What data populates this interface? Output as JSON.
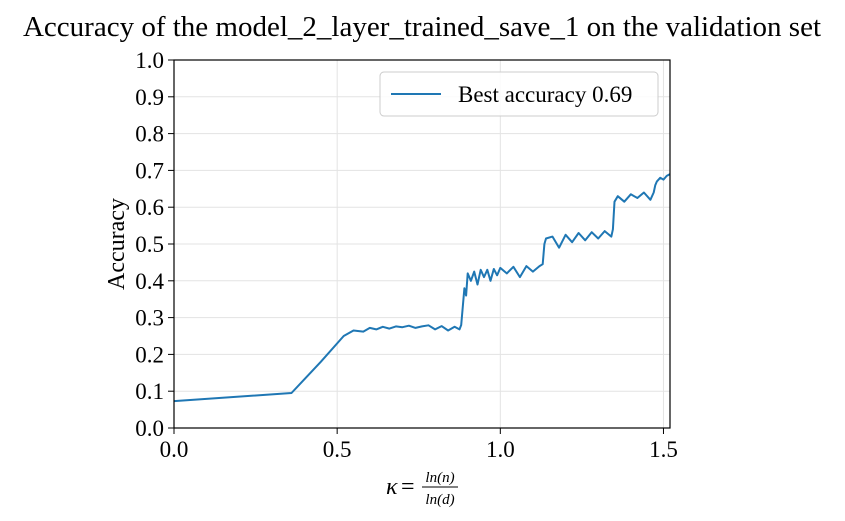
{
  "chart_data": {
    "type": "line",
    "title": "Accuracy of the model_2_layer_trained_save_1 on the validation set",
    "xlabel": {
      "symbol": "κ",
      "equals": "=",
      "numerator": "ln(n)",
      "denominator": "ln(d)"
    },
    "ylabel": "Accuracy",
    "xlim": [
      0.0,
      1.52
    ],
    "ylim": [
      0.0,
      1.0
    ],
    "xticks": [
      0.0,
      0.5,
      1.0,
      1.5
    ],
    "xtick_labels": [
      "0.0",
      "0.5",
      "1.0",
      "1.5"
    ],
    "yticks": [
      0.0,
      0.1,
      0.2,
      0.3,
      0.4,
      0.5,
      0.6,
      0.7,
      0.8,
      0.9,
      1.0
    ],
    "ytick_labels": [
      "0.0",
      "0.1",
      "0.2",
      "0.3",
      "0.4",
      "0.5",
      "0.6",
      "0.7",
      "0.8",
      "0.9",
      "1.0"
    ],
    "grid": true,
    "legend_position": "top-right",
    "color": "#1f77b4",
    "series": [
      {
        "name": "Best accuracy 0.69",
        "x": [
          0.0,
          0.36,
          0.45,
          0.52,
          0.55,
          0.58,
          0.6,
          0.62,
          0.64,
          0.66,
          0.68,
          0.7,
          0.72,
          0.74,
          0.76,
          0.78,
          0.8,
          0.82,
          0.84,
          0.86,
          0.875,
          0.88,
          0.885,
          0.89,
          0.895,
          0.9,
          0.91,
          0.92,
          0.93,
          0.94,
          0.95,
          0.96,
          0.97,
          0.98,
          0.99,
          1.0,
          1.02,
          1.04,
          1.06,
          1.08,
          1.1,
          1.12,
          1.13,
          1.135,
          1.14,
          1.16,
          1.18,
          1.2,
          1.22,
          1.24,
          1.26,
          1.28,
          1.3,
          1.32,
          1.34,
          1.345,
          1.35,
          1.36,
          1.38,
          1.4,
          1.42,
          1.44,
          1.46,
          1.47,
          1.475,
          1.48,
          1.49,
          1.5,
          1.51,
          1.52
        ],
        "y": [
          0.073,
          0.095,
          0.18,
          0.25,
          0.265,
          0.262,
          0.272,
          0.268,
          0.275,
          0.27,
          0.276,
          0.274,
          0.278,
          0.272,
          0.276,
          0.279,
          0.268,
          0.277,
          0.265,
          0.275,
          0.268,
          0.28,
          0.33,
          0.38,
          0.36,
          0.42,
          0.4,
          0.425,
          0.39,
          0.43,
          0.41,
          0.43,
          0.4,
          0.432,
          0.415,
          0.435,
          0.42,
          0.438,
          0.41,
          0.44,
          0.425,
          0.44,
          0.445,
          0.5,
          0.515,
          0.52,
          0.49,
          0.525,
          0.505,
          0.53,
          0.51,
          0.532,
          0.515,
          0.535,
          0.52,
          0.54,
          0.615,
          0.63,
          0.615,
          0.635,
          0.625,
          0.64,
          0.62,
          0.64,
          0.66,
          0.67,
          0.68,
          0.675,
          0.685,
          0.69
        ]
      }
    ]
  }
}
